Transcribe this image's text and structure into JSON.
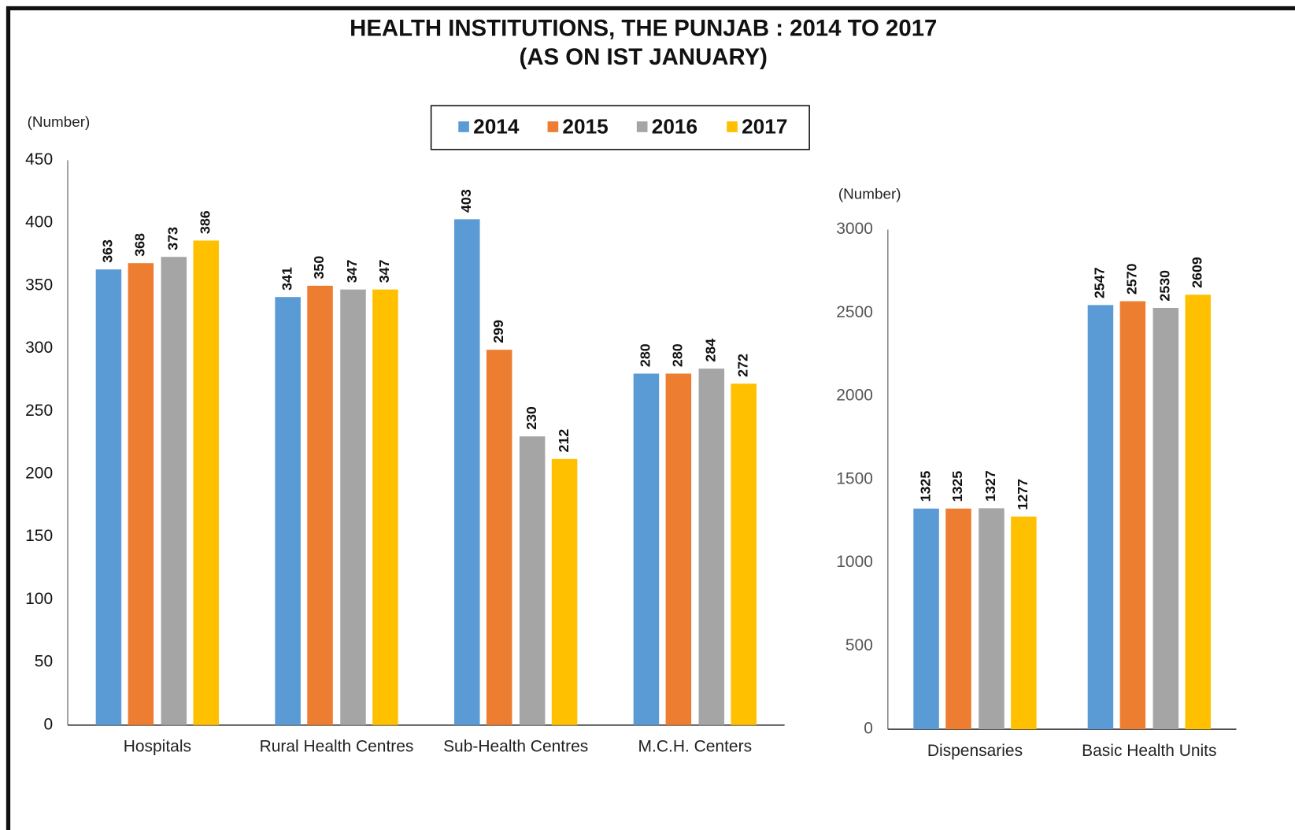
{
  "title": "HEALTH INSTITUTIONS, THE PUNJAB : 2014 TO 2017",
  "subtitle": "(AS ON IST JANUARY)",
  "chart_data": [
    {
      "type": "bar",
      "y_label": "(Number)",
      "categories": [
        "Hospitals",
        "Rural Health Centres",
        "Sub-Health Centres",
        "M.C.H. Centers"
      ],
      "series": [
        {
          "name": "2014",
          "color": "#5b9bd5",
          "values": [
            363,
            341,
            403,
            280
          ]
        },
        {
          "name": "2015",
          "color": "#ed7d31",
          "values": [
            368,
            350,
            299,
            280
          ]
        },
        {
          "name": "2016",
          "color": "#a5a5a5",
          "values": [
            373,
            347,
            230,
            284
          ]
        },
        {
          "name": "2017",
          "color": "#ffc000",
          "values": [
            386,
            347,
            212,
            272
          ]
        }
      ],
      "ylim": [
        0,
        450
      ],
      "yticks": [
        0,
        50,
        100,
        150,
        200,
        250,
        300,
        350,
        400,
        450
      ],
      "grid": false
    },
    {
      "type": "bar",
      "y_label": "(Number)",
      "categories": [
        "Dispensaries",
        "Basic Health Units"
      ],
      "series": [
        {
          "name": "2014",
          "color": "#5b9bd5",
          "values": [
            1325,
            2547
          ]
        },
        {
          "name": "2015",
          "color": "#ed7d31",
          "values": [
            1325,
            2570
          ]
        },
        {
          "name": "2016",
          "color": "#a5a5a5",
          "values": [
            1327,
            2530
          ]
        },
        {
          "name": "2017",
          "color": "#ffc000",
          "values": [
            1277,
            2609
          ]
        }
      ],
      "ylim": [
        0,
        3000
      ],
      "yticks": [
        0,
        500,
        1000,
        1500,
        2000,
        2500,
        3000
      ],
      "grid": false
    }
  ]
}
